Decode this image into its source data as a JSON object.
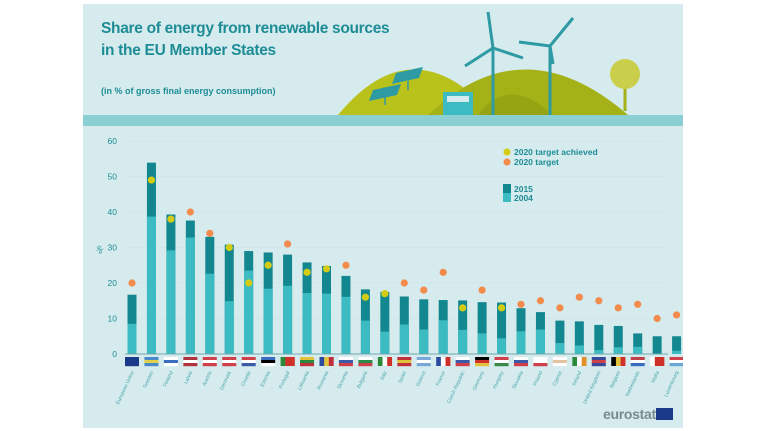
{
  "header": {
    "title_line1": "Share of energy from renewable sources",
    "title_line2": "in the EU Member States",
    "subtitle": "(in % of gross final energy consumption)"
  },
  "brand": {
    "logo_text": "eurostat",
    "logo_icon": "eu-flag-icon"
  },
  "colors": {
    "bar_2015": "#13878f",
    "bar_2004": "#3cbcc2",
    "target_achieved": "#d4cc14",
    "target": "#f28b4c",
    "text": "#1e8c96",
    "panel": "#d6ebed"
  },
  "chart_data": {
    "type": "bar",
    "title": "Share of energy from renewable sources in the EU Member States",
    "subtitle": "(in % of gross final energy consumption)",
    "xlabel": "",
    "ylabel": "%",
    "ylim": [
      0,
      60
    ],
    "yticks": [
      0,
      10,
      20,
      30,
      40,
      50,
      60
    ],
    "grid": true,
    "legend_position": "top-right",
    "legend": [
      {
        "label": "2020 target achieved",
        "marker": "dot",
        "color": "#d4cc14"
      },
      {
        "label": "2020 target",
        "marker": "dot",
        "color": "#f28b4c"
      },
      {
        "label": "2015",
        "marker": "bar",
        "color": "#13878f"
      },
      {
        "label": "2004",
        "marker": "bar",
        "color": "#3cbcc2"
      }
    ],
    "categories": [
      "European Union",
      "Sweden",
      "Finland",
      "Latvia",
      "Austria",
      "Denmark",
      "Croatia",
      "Estonia",
      "Portugal",
      "Lithuania",
      "Romania",
      "Slovenia",
      "Bulgaria",
      "Italy",
      "Spain",
      "Greece",
      "France",
      "Czech Republic",
      "Germany",
      "Hungary",
      "Slovakia",
      "Poland",
      "Cyprus",
      "Ireland",
      "United Kingdom",
      "Belgium",
      "Netherlands",
      "Malta",
      "Luxembourg"
    ],
    "flags": [
      "eu",
      "se",
      "fi",
      "lv",
      "at",
      "dk",
      "hr",
      "ee",
      "pt",
      "lt",
      "ro",
      "si",
      "bg",
      "it",
      "es",
      "el",
      "fr",
      "cz",
      "de",
      "hu",
      "sk",
      "pl",
      "cy",
      "ie",
      "uk",
      "be",
      "nl",
      "mt",
      "lu"
    ],
    "series": [
      {
        "name": "2015",
        "values": [
          16.7,
          53.9,
          39.3,
          37.6,
          33.0,
          30.8,
          29.0,
          28.6,
          28.0,
          25.8,
          24.8,
          22.0,
          18.2,
          17.5,
          16.2,
          15.4,
          15.2,
          15.1,
          14.6,
          14.5,
          12.9,
          11.8,
          9.4,
          9.2,
          8.2,
          7.9,
          5.8,
          5.0,
          5.0
        ]
      },
      {
        "name": "2004",
        "values": [
          8.5,
          38.7,
          29.2,
          32.8,
          22.6,
          14.9,
          23.5,
          18.4,
          19.2,
          17.2,
          17.0,
          16.1,
          9.4,
          6.3,
          8.3,
          6.9,
          9.5,
          6.8,
          5.8,
          4.4,
          6.4,
          6.9,
          3.1,
          2.4,
          1.1,
          1.9,
          2.0,
          0.1,
          0.9
        ]
      },
      {
        "name": "2020 target",
        "values": [
          20,
          49,
          38,
          40,
          34,
          30,
          20,
          25,
          31,
          23,
          24,
          25,
          16,
          17,
          20,
          18,
          23,
          13,
          18,
          13,
          14,
          15,
          13,
          16,
          15,
          13,
          14,
          10,
          11
        ]
      }
    ],
    "target_achieved": [
      false,
      true,
      true,
      false,
      false,
      true,
      true,
      true,
      false,
      true,
      true,
      false,
      true,
      true,
      false,
      false,
      false,
      true,
      false,
      true,
      false,
      false,
      false,
      false,
      false,
      false,
      false,
      false,
      false
    ]
  }
}
